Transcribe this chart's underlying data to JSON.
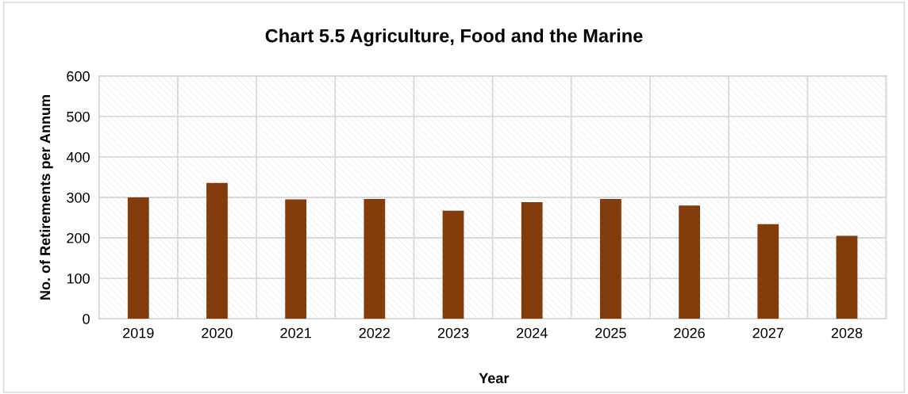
{
  "chart_data": {
    "type": "bar",
    "title": "Chart 5.5 Agriculture, Food and the Marine",
    "xlabel": "Year",
    "ylabel": "No. of Retirements per Annum",
    "categories": [
      "2019",
      "2020",
      "2021",
      "2022",
      "2023",
      "2024",
      "2025",
      "2026",
      "2027",
      "2028"
    ],
    "values": [
      300,
      336,
      295,
      296,
      267,
      288,
      296,
      280,
      234,
      205
    ],
    "color": "#843c0c",
    "ylim": [
      0,
      600
    ],
    "yticks": [
      0,
      100,
      200,
      300,
      400,
      500,
      600
    ],
    "grid": true,
    "legend": false
  }
}
